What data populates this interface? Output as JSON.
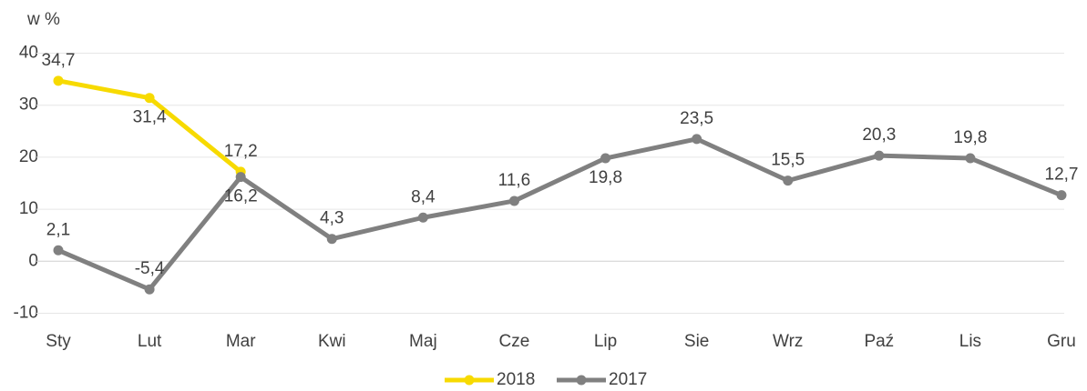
{
  "chart_data": {
    "type": "line",
    "y_label": "w %",
    "categories": [
      "Sty",
      "Lut",
      "Mar",
      "Kwi",
      "Maj",
      "Cze",
      "Lip",
      "Sie",
      "Wrz",
      "Paź",
      "Lis",
      "Gru"
    ],
    "series": [
      {
        "name": "2018",
        "color": "#f7da00",
        "values": [
          34.7,
          31.4,
          17.2,
          null,
          null,
          null,
          null,
          null,
          null,
          null,
          null,
          null
        ],
        "value_labels": [
          "34,7",
          "31,4",
          "17,2",
          null,
          null,
          null,
          null,
          null,
          null,
          null,
          null,
          null
        ]
      },
      {
        "name": "2017",
        "color": "#808080",
        "values": [
          2.1,
          -5.4,
          16.2,
          4.3,
          8.4,
          11.6,
          19.8,
          23.5,
          15.5,
          20.3,
          19.8,
          12.7
        ],
        "value_labels": [
          "2,1",
          "-5,4",
          "16,2",
          "4,3",
          "8,4",
          "11,6",
          "19,8",
          "23,5",
          "15,5",
          "20,3",
          "19,8",
          "12,7"
        ]
      }
    ],
    "ylim": [
      -10,
      40
    ],
    "yticks": [
      -10,
      0,
      10,
      20,
      30,
      40
    ],
    "grid": true,
    "legend": "bottom"
  }
}
